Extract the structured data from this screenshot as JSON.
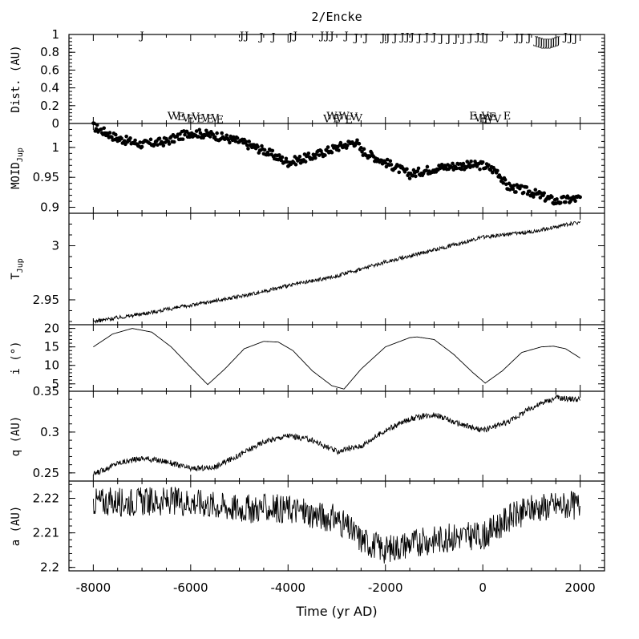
{
  "chart_data": {
    "type": "line",
    "title": "2/Encke",
    "xlabel": "Time (yr AD)",
    "xlim": [
      -8500,
      2500
    ],
    "xticks": [
      -8000,
      -6000,
      -4000,
      -2000,
      0,
      2000
    ],
    "panels": [
      {
        "id": "dist",
        "ylabel": "Dist. (AU)",
        "style": "letters",
        "ylim": [
          0,
          1
        ],
        "yticks": [
          0,
          0.2,
          0.4,
          0.6,
          0.8,
          1
        ],
        "yticklabels": [
          "0",
          "0.2",
          "0.4",
          "0.6",
          "0.8",
          "1"
        ],
        "encounters": [
          {
            "x": -7000,
            "y": 0.98,
            "label": "J"
          },
          {
            "x": -4950,
            "y": 0.98,
            "label": "J"
          },
          {
            "x": -4850,
            "y": 0.98,
            "label": "J"
          },
          {
            "x": -4550,
            "y": 0.97,
            "label": "J"
          },
          {
            "x": -4300,
            "y": 0.97,
            "label": "J"
          },
          {
            "x": -3950,
            "y": 0.97,
            "label": "J"
          },
          {
            "x": -3850,
            "y": 0.98,
            "label": "J"
          },
          {
            "x": -3300,
            "y": 0.98,
            "label": "J"
          },
          {
            "x": -3200,
            "y": 0.98,
            "label": "J"
          },
          {
            "x": -3100,
            "y": 0.98,
            "label": "J"
          },
          {
            "x": -2800,
            "y": 0.98,
            "label": "J"
          },
          {
            "x": -2600,
            "y": 0.96,
            "label": "J"
          },
          {
            "x": -2400,
            "y": 0.96,
            "label": "J"
          },
          {
            "x": -2050,
            "y": 0.96,
            "label": "J"
          },
          {
            "x": -1950,
            "y": 0.96,
            "label": "J"
          },
          {
            "x": -1800,
            "y": 0.96,
            "label": "J"
          },
          {
            "x": -1650,
            "y": 0.97,
            "label": "J"
          },
          {
            "x": -1550,
            "y": 0.97,
            "label": "J"
          },
          {
            "x": -1450,
            "y": 0.97,
            "label": "J"
          },
          {
            "x": -1300,
            "y": 0.96,
            "label": "J"
          },
          {
            "x": -1150,
            "y": 0.97,
            "label": "J"
          },
          {
            "x": -1000,
            "y": 0.97,
            "label": "J"
          },
          {
            "x": -850,
            "y": 0.95,
            "label": "J"
          },
          {
            "x": -700,
            "y": 0.95,
            "label": "J"
          },
          {
            "x": -550,
            "y": 0.95,
            "label": "J"
          },
          {
            "x": -400,
            "y": 0.95,
            "label": "J"
          },
          {
            "x": -250,
            "y": 0.96,
            "label": "J"
          },
          {
            "x": -100,
            "y": 0.97,
            "label": "J"
          },
          {
            "x": 0,
            "y": 0.97,
            "label": "J"
          },
          {
            "x": 80,
            "y": 0.96,
            "label": "J"
          },
          {
            "x": 400,
            "y": 0.98,
            "label": "J"
          },
          {
            "x": 700,
            "y": 0.96,
            "label": "J"
          },
          {
            "x": 800,
            "y": 0.96,
            "label": "J"
          },
          {
            "x": 950,
            "y": 0.96,
            "label": "J"
          },
          {
            "x": 1100,
            "y": 0.93,
            "label": "J"
          },
          {
            "x": 1150,
            "y": 0.92,
            "label": "J"
          },
          {
            "x": 1200,
            "y": 0.91,
            "label": "J"
          },
          {
            "x": 1250,
            "y": 0.9,
            "label": "J"
          },
          {
            "x": 1300,
            "y": 0.9,
            "label": "J"
          },
          {
            "x": 1350,
            "y": 0.9,
            "label": "J"
          },
          {
            "x": 1400,
            "y": 0.9,
            "label": "J"
          },
          {
            "x": 1450,
            "y": 0.91,
            "label": "J"
          },
          {
            "x": 1500,
            "y": 0.92,
            "label": "J"
          },
          {
            "x": 1550,
            "y": 0.93,
            "label": "J"
          },
          {
            "x": 1700,
            "y": 0.97,
            "label": "J"
          },
          {
            "x": 1800,
            "y": 0.96,
            "label": "J"
          },
          {
            "x": 1900,
            "y": 0.95,
            "label": "J"
          },
          {
            "x": -6400,
            "y": 0.08,
            "label": "V"
          },
          {
            "x": -6300,
            "y": 0.08,
            "label": "V"
          },
          {
            "x": -6200,
            "y": 0.07,
            "label": "E"
          },
          {
            "x": -6100,
            "y": 0.06,
            "label": "V"
          },
          {
            "x": -6000,
            "y": 0.05,
            "label": "E"
          },
          {
            "x": -5900,
            "y": 0.07,
            "label": "V"
          },
          {
            "x": -5800,
            "y": 0.05,
            "label": "E"
          },
          {
            "x": -5700,
            "y": 0.06,
            "label": "V"
          },
          {
            "x": -5600,
            "y": 0.05,
            "label": "E"
          },
          {
            "x": -5500,
            "y": 0.06,
            "label": "V"
          },
          {
            "x": -5400,
            "y": 0.04,
            "label": "E"
          },
          {
            "x": -3200,
            "y": 0.05,
            "label": "V"
          },
          {
            "x": -3100,
            "y": 0.08,
            "label": "W"
          },
          {
            "x": -3000,
            "y": 0.05,
            "label": "E"
          },
          {
            "x": -2950,
            "y": 0.06,
            "label": "V"
          },
          {
            "x": -2850,
            "y": 0.08,
            "label": "W"
          },
          {
            "x": -2750,
            "y": 0.04,
            "label": "E"
          },
          {
            "x": -2650,
            "y": 0.07,
            "label": "V"
          },
          {
            "x": -2550,
            "y": 0.06,
            "label": "V"
          },
          {
            "x": -200,
            "y": 0.08,
            "label": "E"
          },
          {
            "x": -100,
            "y": 0.06,
            "label": "V"
          },
          {
            "x": 0,
            "y": 0.05,
            "label": "E"
          },
          {
            "x": 50,
            "y": 0.08,
            "label": "V"
          },
          {
            "x": 100,
            "y": 0.04,
            "label": "E"
          },
          {
            "x": 150,
            "y": 0.06,
            "label": "V"
          },
          {
            "x": 200,
            "y": 0.07,
            "label": "E"
          },
          {
            "x": 300,
            "y": 0.05,
            "label": "V"
          },
          {
            "x": 500,
            "y": 0.08,
            "label": "E"
          }
        ]
      },
      {
        "id": "moid",
        "ylabel": "MOID",
        "ylabel_sub": "Jup",
        "style": "dots",
        "ylim": [
          0.89,
          1.04
        ],
        "yticks": [
          0.9,
          0.95,
          1
        ],
        "yticklabels": [
          "0.9",
          "0.95",
          "1"
        ],
        "x": [
          -8000,
          -7500,
          -7000,
          -6500,
          -6000,
          -5500,
          -5000,
          -4500,
          -4000,
          -3500,
          -3000,
          -2600,
          -2500,
          -2000,
          -1500,
          -1000,
          -500,
          0,
          300,
          500,
          1000,
          1500,
          2000
        ],
        "y": [
          1.035,
          1.015,
          1.005,
          1.01,
          1.025,
          1.02,
          1.01,
          0.995,
          0.975,
          0.985,
          1.0,
          1.01,
          0.995,
          0.975,
          0.955,
          0.965,
          0.97,
          0.97,
          0.96,
          0.935,
          0.925,
          0.91,
          0.915
        ]
      },
      {
        "id": "tjup",
        "ylabel": "T",
        "ylabel_sub": "Jup",
        "style": "line",
        "ylim": [
          2.927,
          3.03
        ],
        "yticks": [
          2.95,
          3
        ],
        "yticklabels": [
          "2.95",
          "3"
        ],
        "x": [
          -8000,
          -7000,
          -6000,
          -5000,
          -4000,
          -3000,
          -2000,
          -1000,
          0,
          1000,
          2000
        ],
        "y": [
          2.93,
          2.937,
          2.945,
          2.953,
          2.963,
          2.972,
          2.985,
          2.996,
          3.008,
          3.013,
          3.022
        ]
      },
      {
        "id": "incl",
        "ylabel": "i (°)",
        "style": "line",
        "ylim": [
          3,
          21
        ],
        "yticks": [
          5,
          10,
          15,
          20
        ],
        "yticklabels": [
          "5",
          "10",
          "15",
          "20"
        ],
        "x": [
          -8000,
          -7600,
          -7200,
          -6800,
          -6400,
          -6000,
          -5650,
          -5300,
          -4900,
          -4500,
          -4200,
          -3900,
          -3500,
          -3100,
          -2850,
          -2500,
          -2000,
          -1500,
          -1350,
          -1000,
          -600,
          -200,
          50,
          400,
          800,
          1200,
          1450,
          1700,
          2000
        ],
        "y": [
          15,
          18.5,
          20,
          19,
          15,
          9.5,
          4.8,
          9,
          14.5,
          16.5,
          16.3,
          14,
          8.5,
          4.5,
          3.6,
          9,
          15,
          17.5,
          17.7,
          17,
          13,
          8,
          5.2,
          8.5,
          13.5,
          15,
          15.2,
          14.5,
          12
        ]
      },
      {
        "id": "q",
        "ylabel": "q (AU)",
        "style": "line",
        "ylim": [
          0.24,
          0.35
        ],
        "yticks": [
          0.25,
          0.3,
          0.35
        ],
        "yticklabels": [
          "0.25",
          "0.3",
          "0.35"
        ],
        "x": [
          -8000,
          -7500,
          -7000,
          -6500,
          -6000,
          -5500,
          -5000,
          -4500,
          -4000,
          -3500,
          -3000,
          -2500,
          -2000,
          -1500,
          -1000,
          -500,
          0,
          500,
          1000,
          1500,
          2000
        ],
        "y": [
          0.248,
          0.262,
          0.268,
          0.264,
          0.255,
          0.257,
          0.272,
          0.288,
          0.296,
          0.29,
          0.276,
          0.283,
          0.302,
          0.316,
          0.322,
          0.31,
          0.302,
          0.312,
          0.33,
          0.342,
          0.34
        ]
      },
      {
        "id": "a",
        "ylabel": "a (AU)",
        "style": "line",
        "ylim": [
          2.199,
          2.225
        ],
        "yticks": [
          2.2,
          2.21,
          2.22
        ],
        "yticklabels": [
          "2.2",
          "2.21",
          "2.22"
        ],
        "x": [
          -8000,
          -7000,
          -6000,
          -5000,
          -4000,
          -3000,
          -2500,
          -2000,
          -1500,
          -1000,
          -500,
          0,
          500,
          1000,
          1500,
          2000
        ],
        "y": [
          2.219,
          2.219,
          2.219,
          2.217,
          2.217,
          2.214,
          2.208,
          2.205,
          2.207,
          2.208,
          2.209,
          2.209,
          2.214,
          2.217,
          2.218,
          2.218
        ]
      }
    ]
  }
}
